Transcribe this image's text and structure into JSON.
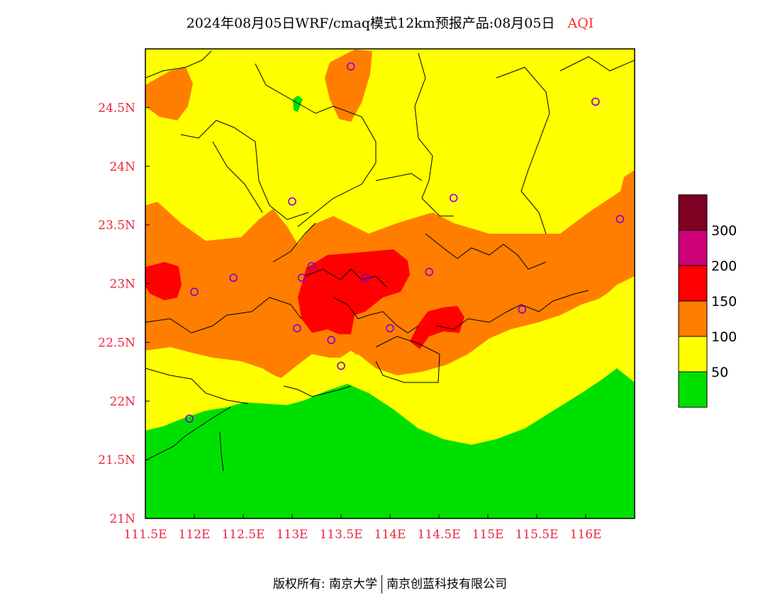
{
  "title": {
    "text": "2024年08月05日WRF/cmaq模式12km预报产品:08月05日",
    "variable": "AQI",
    "variable_color": "#ff2a2a"
  },
  "axes": {
    "x_ticks": [
      "111.5E",
      "112E",
      "112.5E",
      "113E",
      "113.5E",
      "114E",
      "114.5E",
      "115E",
      "115.5E",
      "116E"
    ],
    "y_ticks": [
      "24.5N",
      "24N",
      "23.5N",
      "23N",
      "22.5N",
      "22N",
      "21.5N",
      "21N"
    ],
    "x_range_lon": [
      111.5,
      116.5
    ],
    "y_range_lat": [
      21.0,
      25.0
    ],
    "label_color": "#e8283c"
  },
  "legend": {
    "levels": [
      {
        "min": 0,
        "max": 50,
        "color": "#00e000"
      },
      {
        "min": 50,
        "max": 100,
        "color": "#ffff00"
      },
      {
        "min": 100,
        "max": 150,
        "color": "#ff7e00"
      },
      {
        "min": 150,
        "max": 200,
        "color": "#ff0000"
      },
      {
        "min": 200,
        "max": 300,
        "color": "#cc0077"
      },
      {
        "min": 300,
        "max": null,
        "color": "#7e0023"
      }
    ],
    "labels": [
      "50",
      "100",
      "150",
      "200",
      "300"
    ]
  },
  "stations": [
    {
      "lon": 113.6,
      "lat": 24.85
    },
    {
      "lon": 116.1,
      "lat": 24.55
    },
    {
      "lon": 113.0,
      "lat": 23.7
    },
    {
      "lon": 114.65,
      "lat": 23.73
    },
    {
      "lon": 116.35,
      "lat": 23.55
    },
    {
      "lon": 113.2,
      "lat": 23.15
    },
    {
      "lon": 112.4,
      "lat": 23.05
    },
    {
      "lon": 113.1,
      "lat": 23.05
    },
    {
      "lon": 113.75,
      "lat": 23.05
    },
    {
      "lon": 114.4,
      "lat": 23.1
    },
    {
      "lon": 112.0,
      "lat": 22.93
    },
    {
      "lon": 115.35,
      "lat": 22.78
    },
    {
      "lon": 113.05,
      "lat": 22.62
    },
    {
      "lon": 114.0,
      "lat": 22.62
    },
    {
      "lon": 113.4,
      "lat": 22.52
    },
    {
      "lon": 113.5,
      "lat": 22.3
    },
    {
      "lon": 111.95,
      "lat": 21.85
    }
  ],
  "footer": {
    "left": "版权所有: 南京大学",
    "right": "南京创蓝科技有限公司"
  }
}
